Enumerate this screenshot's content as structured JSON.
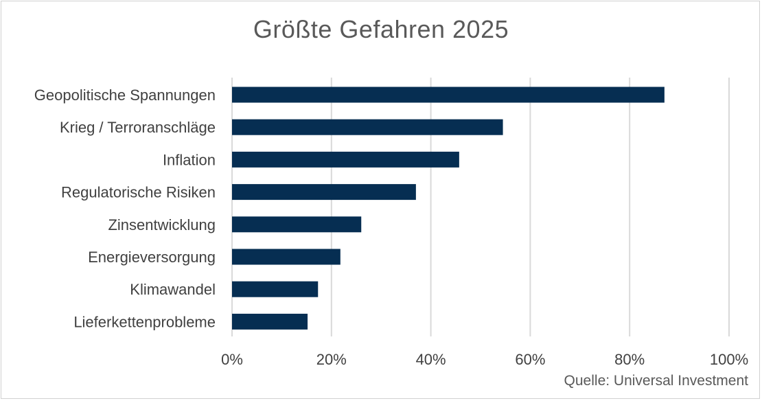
{
  "chart_data": {
    "type": "bar",
    "orientation": "horizontal",
    "title": "Größte Gefahren 2025",
    "categories": [
      "Geopolitische Spannungen",
      "Krieg / Terroranschläge",
      "Inflation",
      "Regulatorische Risiken",
      "Zinsentwicklung",
      "Energieversorgung",
      "Klimawandel",
      "Lieferkettenprobleme"
    ],
    "values": [
      87,
      54.5,
      45.7,
      37,
      26,
      21.8,
      17.3,
      15.2
    ],
    "xlim": [
      0,
      100
    ],
    "xticks": [
      "0%",
      "20%",
      "40%",
      "60%",
      "80%",
      "100%"
    ],
    "grid": true,
    "bar_color": "#062e52",
    "source": "Quelle: Universal Investment"
  }
}
